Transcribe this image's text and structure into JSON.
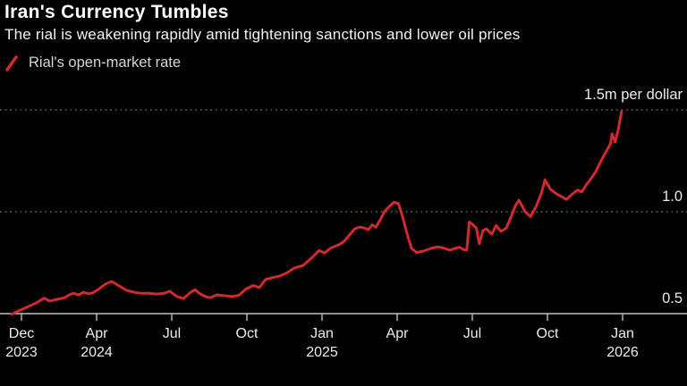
{
  "header": {
    "title": "Iran's Currency Tumbles",
    "subtitle": "The rial is weakening rapidly amid tightening sanctions and lower oil prices"
  },
  "legend": {
    "marker": "red-slash",
    "label": "Rial's open-market rate"
  },
  "colors": {
    "background": "#000000",
    "title_text": "#ffffff",
    "subtitle_text": "#f4f4f4",
    "legend_text": "#d6d6d6",
    "axis_text": "#ececec",
    "axis_line": "#bfbfbf",
    "gridline": "#606060",
    "line": "#d3292c"
  },
  "chart_data": {
    "type": "line",
    "title": "Iran's Currency Tumbles",
    "series_name": "Rial's open-market rate",
    "x_unit": "months since Dec 2023",
    "y_unit": "million rials per US dollar",
    "y_range": [
      0.5,
      1.5
    ],
    "grid": "dotted horizontal at 1.0 and 1.5",
    "legend_position": "top-left",
    "line_color": "#d3292c",
    "x_ticks": [
      {
        "m": 0,
        "month": "Dec",
        "year": "2023"
      },
      {
        "m": 4,
        "month": "Apr",
        "year": "2024"
      },
      {
        "m": 7,
        "month": "Jul",
        "year": ""
      },
      {
        "m": 10,
        "month": "Oct",
        "year": ""
      },
      {
        "m": 13,
        "month": "Jan",
        "year": "2025"
      },
      {
        "m": 16,
        "month": "Apr",
        "year": ""
      },
      {
        "m": 19,
        "month": "Jul",
        "year": ""
      },
      {
        "m": 22,
        "month": "Oct",
        "year": ""
      },
      {
        "m": 25,
        "month": "Jan",
        "year": "2026"
      }
    ],
    "y_ticks": [
      {
        "v": 1.5,
        "label": "1.5m per dollar"
      },
      {
        "v": 1.0,
        "label": "1.0"
      },
      {
        "v": 0.5,
        "label": "0.5"
      }
    ],
    "points": [
      [
        -0.5,
        0.497
      ],
      [
        -0.25,
        0.51
      ],
      [
        0.3,
        0.532
      ],
      [
        0.8,
        0.553
      ],
      [
        1.2,
        0.576
      ],
      [
        1.5,
        0.562
      ],
      [
        1.9,
        0.57
      ],
      [
        2.3,
        0.578
      ],
      [
        2.55,
        0.592
      ],
      [
        2.75,
        0.6
      ],
      [
        3.05,
        0.592
      ],
      [
        3.3,
        0.605
      ],
      [
        3.55,
        0.598
      ],
      [
        3.8,
        0.602
      ],
      [
        4.1,
        0.622
      ],
      [
        4.35,
        0.645
      ],
      [
        4.6,
        0.658
      ],
      [
        4.9,
        0.636
      ],
      [
        5.2,
        0.614
      ],
      [
        5.5,
        0.605
      ],
      [
        5.75,
        0.6
      ],
      [
        6.1,
        0.6
      ],
      [
        6.4,
        0.596
      ],
      [
        6.7,
        0.6
      ],
      [
        6.93,
        0.61
      ],
      [
        7.2,
        0.584
      ],
      [
        7.47,
        0.574
      ],
      [
        7.75,
        0.605
      ],
      [
        7.93,
        0.617
      ],
      [
        8.1,
        0.6
      ],
      [
        8.35,
        0.583
      ],
      [
        8.54,
        0.578
      ],
      [
        8.8,
        0.592
      ],
      [
        9.07,
        0.588
      ],
      [
        9.43,
        0.584
      ],
      [
        9.68,
        0.59
      ],
      [
        9.96,
        0.62
      ],
      [
        10.25,
        0.638
      ],
      [
        10.5,
        0.628
      ],
      [
        10.75,
        0.668
      ],
      [
        11.0,
        0.676
      ],
      [
        11.3,
        0.684
      ],
      [
        11.6,
        0.7
      ],
      [
        11.9,
        0.724
      ],
      [
        12.25,
        0.737
      ],
      [
        12.6,
        0.775
      ],
      [
        12.88,
        0.81
      ],
      [
        13.1,
        0.798
      ],
      [
        13.35,
        0.822
      ],
      [
        13.7,
        0.84
      ],
      [
        13.9,
        0.857
      ],
      [
        14.1,
        0.887
      ],
      [
        14.3,
        0.916
      ],
      [
        14.5,
        0.925
      ],
      [
        14.7,
        0.92
      ],
      [
        14.85,
        0.912
      ],
      [
        15.0,
        0.936
      ],
      [
        15.15,
        0.924
      ],
      [
        15.33,
        0.962
      ],
      [
        15.5,
        1.002
      ],
      [
        15.7,
        1.028
      ],
      [
        15.88,
        1.047
      ],
      [
        16.05,
        1.04
      ],
      [
        16.2,
        0.982
      ],
      [
        16.4,
        0.89
      ],
      [
        16.57,
        0.82
      ],
      [
        16.78,
        0.8
      ],
      [
        17.05,
        0.807
      ],
      [
        17.35,
        0.82
      ],
      [
        17.62,
        0.828
      ],
      [
        17.85,
        0.822
      ],
      [
        18.1,
        0.812
      ],
      [
        18.3,
        0.82
      ],
      [
        18.5,
        0.826
      ],
      [
        18.65,
        0.814
      ],
      [
        18.78,
        0.812
      ],
      [
        18.88,
        0.95
      ],
      [
        19.02,
        0.937
      ],
      [
        19.16,
        0.92
      ],
      [
        19.28,
        0.843
      ],
      [
        19.42,
        0.908
      ],
      [
        19.56,
        0.916
      ],
      [
        19.78,
        0.89
      ],
      [
        19.95,
        0.933
      ],
      [
        20.14,
        0.904
      ],
      [
        20.36,
        0.92
      ],
      [
        20.52,
        0.968
      ],
      [
        20.72,
        1.03
      ],
      [
        20.86,
        1.057
      ],
      [
        21.1,
        1.002
      ],
      [
        21.32,
        0.976
      ],
      [
        21.56,
        1.03
      ],
      [
        21.76,
        1.092
      ],
      [
        21.9,
        1.157
      ],
      [
        22.12,
        1.11
      ],
      [
        22.36,
        1.088
      ],
      [
        22.56,
        1.074
      ],
      [
        22.76,
        1.06
      ],
      [
        23.0,
        1.088
      ],
      [
        23.2,
        1.106
      ],
      [
        23.37,
        1.098
      ],
      [
        23.56,
        1.134
      ],
      [
        23.76,
        1.166
      ],
      [
        23.92,
        1.196
      ],
      [
        24.1,
        1.24
      ],
      [
        24.26,
        1.278
      ],
      [
        24.42,
        1.312
      ],
      [
        24.52,
        1.336
      ],
      [
        24.58,
        1.383
      ],
      [
        24.7,
        1.342
      ],
      [
        24.82,
        1.4
      ],
      [
        24.96,
        1.492
      ]
    ]
  }
}
